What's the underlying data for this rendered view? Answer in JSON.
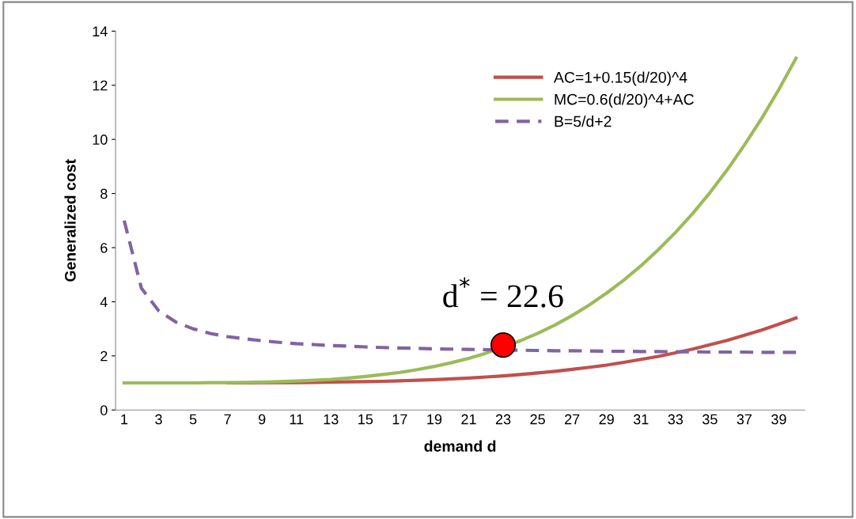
{
  "chart_data": {
    "type": "line",
    "xlabel": "demand d",
    "ylabel": "Generalized cost",
    "categories": [
      "1",
      null,
      "3",
      null,
      "5",
      null,
      "7",
      null,
      "9",
      null,
      "11",
      null,
      "13",
      null,
      "15",
      null,
      "17",
      null,
      "19",
      null,
      "21",
      null,
      "23",
      null,
      "25",
      null,
      "27",
      null,
      "29",
      null,
      "31",
      null,
      "33",
      null,
      "35",
      null,
      "37",
      null,
      "39",
      null
    ],
    "ylim": [
      0,
      14
    ],
    "yticks": [
      0,
      2,
      4,
      6,
      8,
      10,
      12,
      14
    ],
    "grid": false,
    "legend": "top right",
    "series": [
      {
        "name": "AC=1+0.15(d/20)^4",
        "color": "#c0504d",
        "line_style": "solid",
        "values": [
          null,
          null,
          null,
          null,
          null,
          null,
          1.0,
          1.0,
          1.01,
          1.01,
          1.01,
          1.02,
          1.03,
          1.04,
          1.05,
          1.06,
          1.08,
          1.1,
          1.12,
          1.15,
          1.18,
          1.22,
          1.26,
          1.31,
          1.37,
          1.43,
          1.5,
          1.58,
          1.66,
          1.76,
          1.87,
          1.98,
          2.11,
          2.25,
          2.41,
          2.57,
          2.76,
          2.95,
          3.17,
          3.4
        ]
      },
      {
        "name": "MC=0.6(d/20)^4+AC",
        "color": "#9bbb59",
        "line_style": "solid",
        "values": [
          1.0,
          1.0,
          1.0,
          1.0,
          1.0,
          1.01,
          1.01,
          1.02,
          1.03,
          1.05,
          1.07,
          1.1,
          1.13,
          1.18,
          1.24,
          1.31,
          1.39,
          1.49,
          1.61,
          1.75,
          1.91,
          2.1,
          null,
          2.56,
          2.83,
          3.14,
          3.49,
          3.88,
          4.32,
          4.8,
          5.33,
          5.92,
          6.56,
          7.26,
          8.03,
          8.87,
          9.79,
          10.77,
          11.84,
          13.0
        ]
      },
      {
        "name": "B=5/d+2",
        "color": "#8064a2",
        "line_style": "dashed",
        "values": [
          7.0,
          4.5,
          3.67,
          3.25,
          3.0,
          2.83,
          2.71,
          2.63,
          2.56,
          2.5,
          2.45,
          2.42,
          2.38,
          2.36,
          2.33,
          2.31,
          2.29,
          2.28,
          2.26,
          2.25,
          2.24,
          2.23,
          null,
          2.21,
          2.2,
          2.19,
          2.19,
          2.18,
          2.17,
          2.17,
          2.16,
          2.16,
          2.15,
          2.15,
          2.14,
          2.14,
          2.14,
          2.13,
          2.13,
          2.13
        ]
      },
      {
        "type": "scatter",
        "color": "#ff0000",
        "marker": "circle",
        "x": [
          "23"
        ],
        "values": [
          2.4
        ]
      }
    ],
    "annotations": [
      "d$^{*}$ = 22.6"
    ]
  }
}
